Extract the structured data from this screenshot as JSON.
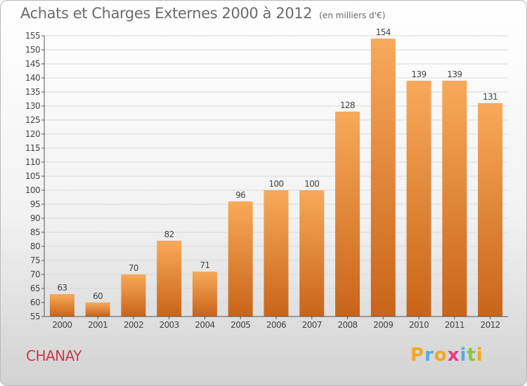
{
  "header": {
    "title": "Achats et Charges Externes 2000 à 2012",
    "unit": "(en milliers d'€)"
  },
  "footer": {
    "place": "CHANAY",
    "logo_letters": [
      "P",
      "r",
      "o",
      "x",
      "i",
      "t",
      "i"
    ],
    "logo_colors": [
      "#f5a623",
      "#5aa9e6",
      "#f5a623",
      "#e8378a",
      "#5aa9e6",
      "#8cc63f",
      "#f5a623"
    ]
  },
  "colors": {
    "bar_top": "#f8a95a",
    "bar_bottom": "#c9641a",
    "title": "#6b6b6b",
    "place": "#c93a4a"
  },
  "chart_data": {
    "type": "bar",
    "title": "Achats et Charges Externes 2000 à 2012",
    "subtitle": "(en milliers d'€)",
    "xlabel": "",
    "ylabel": "",
    "categories": [
      "2000",
      "2001",
      "2002",
      "2003",
      "2004",
      "2005",
      "2006",
      "2007",
      "2008",
      "2009",
      "2010",
      "2011",
      "2012"
    ],
    "values": [
      63,
      60,
      70,
      82,
      71,
      96,
      100,
      100,
      128,
      154,
      139,
      139,
      131
    ],
    "ylim": [
      55,
      155
    ],
    "yticks": [
      55,
      60,
      65,
      70,
      75,
      80,
      85,
      90,
      95,
      100,
      105,
      110,
      115,
      120,
      125,
      130,
      135,
      140,
      145,
      150,
      155
    ],
    "grid": "horizontal",
    "legend": "none"
  }
}
